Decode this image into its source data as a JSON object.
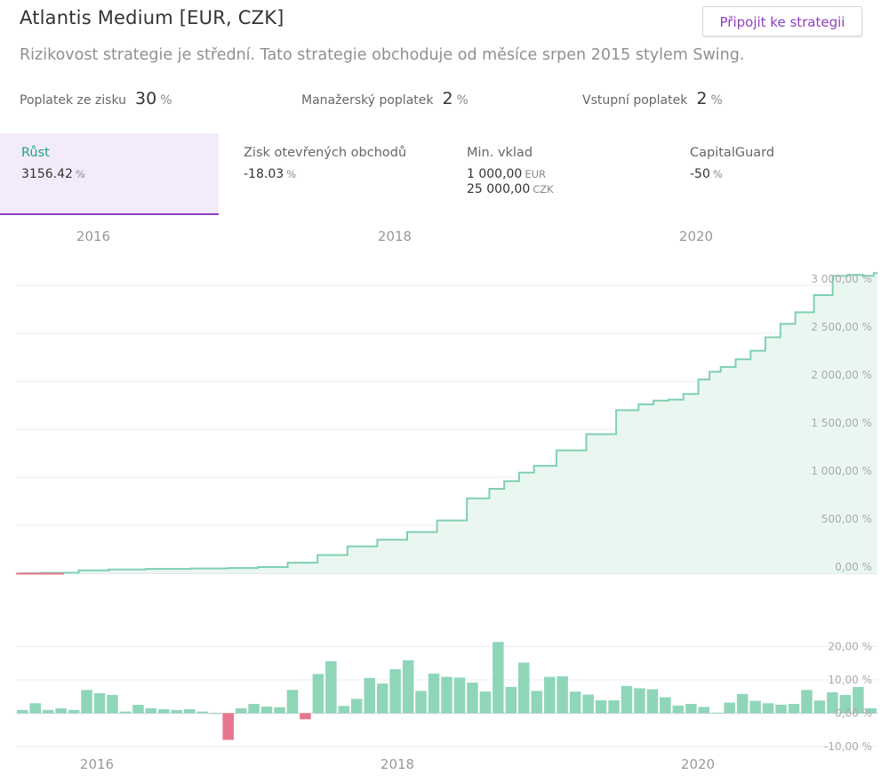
{
  "header": {
    "title": "Atlantis Medium [EUR, CZK]",
    "join_button": "Připojit ke strategii",
    "subtitle": "Rizikovost strategie je střední. Tato strategie obchoduje od měsíce srpen 2015 stylem Swing."
  },
  "fees": [
    {
      "label": "Poplatek ze zisku",
      "value": "30",
      "unit": "%"
    },
    {
      "label": "Manažerský poplatek",
      "value": "2",
      "unit": "%"
    },
    {
      "label": "Vstupní poplatek",
      "value": "2",
      "unit": "%"
    }
  ],
  "stats": {
    "growth": {
      "label": "Růst",
      "value": "3156.42",
      "unit": "%"
    },
    "open_profit": {
      "label": "Zisk otevřených obchodů",
      "value": "-18.03",
      "unit": "%"
    },
    "min_deposit": {
      "label": "Min. vklad",
      "value1": "1 000,00",
      "unit1": "EUR",
      "value2": "25 000,00",
      "unit2": "CZK"
    },
    "capital_guard": {
      "label": "CapitalGuard",
      "value": "-50",
      "unit": "%"
    }
  },
  "colors": {
    "accent": "#8e3fc1",
    "positive": "#8fd6b9",
    "line": "#7fd0b0",
    "negative": "#e8768c"
  },
  "chart_data": [
    {
      "type": "area",
      "x_axis_labels": [
        "2016",
        "2018",
        "2020"
      ],
      "y_ticks": [
        "0,00 %",
        "500,00 %",
        "1 000,00 %",
        "1 500,00 %",
        "2 000,00 %",
        "2 500,00 %",
        "3 000,00 %"
      ],
      "y_tick_values": [
        0,
        500,
        1000,
        1500,
        2000,
        2500,
        3000
      ],
      "ylim": [
        0,
        3150
      ],
      "xlim": [
        2015.58,
        2021.35
      ],
      "grid": true,
      "x": [
        2015.6,
        2015.9,
        2016.1,
        2016.3,
        2016.6,
        2016.9,
        2017.1,
        2017.3,
        2017.5,
        2017.7,
        2017.9,
        2018.1,
        2018.3,
        2018.5,
        2018.7,
        2018.8,
        2018.9,
        2019.0,
        2019.1,
        2019.3,
        2019.5,
        2019.7,
        2019.8,
        2019.9,
        2020.0,
        2020.1,
        2020.2,
        2020.25,
        2020.35,
        2020.45,
        2020.55,
        2020.65,
        2020.75,
        2020.85,
        2021.0,
        2021.1,
        2021.2,
        2021.3,
        2021.35
      ],
      "y": [
        0,
        5,
        30,
        40,
        45,
        50,
        55,
        65,
        110,
        190,
        280,
        350,
        430,
        550,
        780,
        880,
        960,
        1050,
        1120,
        1280,
        1450,
        1700,
        1760,
        1800,
        1810,
        1870,
        2020,
        2100,
        2150,
        2230,
        2320,
        2460,
        2600,
        2720,
        2900,
        3100,
        3110,
        3100,
        3130
      ]
    },
    {
      "type": "bar",
      "x_axis_labels": [
        "2016",
        "2018",
        "2020"
      ],
      "y_ticks": [
        "20,00 %",
        "10,00 %",
        "0,00 %",
        "-10,00 %"
      ],
      "y_tick_values": [
        20,
        10,
        0,
        -10
      ],
      "ylim": [
        -10,
        22
      ],
      "grid": true,
      "values": [
        1,
        3,
        1,
        1.5,
        1,
        7,
        6,
        5.5,
        0.5,
        2.5,
        1.5,
        1.2,
        1,
        1.2,
        0.5,
        0,
        -8,
        1.5,
        2.8,
        2,
        1.8,
        7,
        -1.8,
        11.8,
        15.6,
        2.2,
        4.3,
        10.6,
        8.9,
        13.2,
        15.9,
        6.7,
        11.9,
        10.9,
        10.7,
        9.2,
        6.5,
        21.4,
        7.9,
        15.2,
        6.7,
        10.9,
        11.1,
        6.5,
        5.6,
        3.9,
        3.9,
        8.2,
        7.5,
        7.2,
        4.8,
        2.3,
        2.8,
        1.9,
        0.2,
        3.2,
        5.8,
        3.7,
        3,
        2.6,
        2.8,
        7,
        3.8,
        6.3,
        5.5,
        7.9,
        1.5
      ]
    }
  ]
}
